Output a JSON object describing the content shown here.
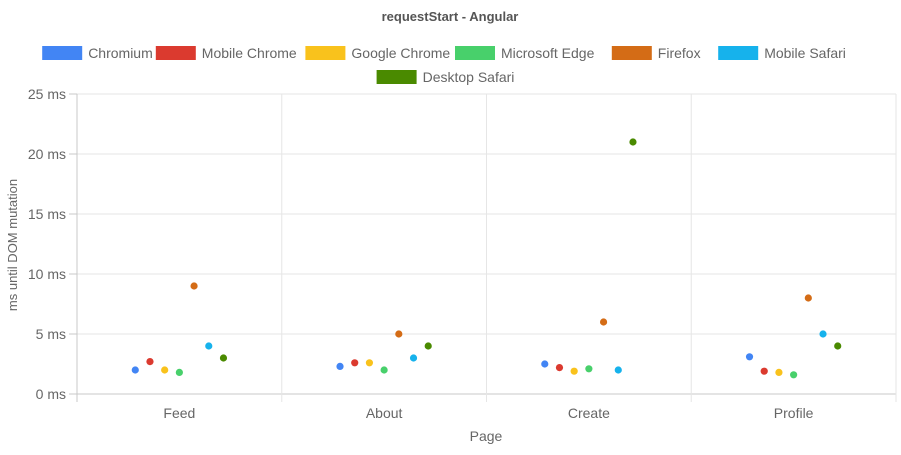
{
  "chart_data": {
    "type": "scatter",
    "title": "requestStart - Angular",
    "xlabel": "Page",
    "ylabel": "ms until DOM mutation",
    "categories": [
      "Feed",
      "About",
      "Create",
      "Profile"
    ],
    "ylim": [
      0,
      25
    ],
    "yticks": [
      0,
      5,
      10,
      15,
      20,
      25
    ],
    "ytick_labels": [
      "0 ms",
      "5 ms",
      "10 ms",
      "15 ms",
      "20 ms",
      "25 ms"
    ],
    "grid": true,
    "legend_position": "top",
    "series": [
      {
        "name": "Chromium",
        "color": "#4285f4",
        "values": [
          2.0,
          2.3,
          2.5,
          3.1
        ]
      },
      {
        "name": "Mobile Chrome",
        "color": "#db3a2f",
        "values": [
          2.7,
          2.6,
          2.2,
          1.9
        ]
      },
      {
        "name": "Google Chrome",
        "color": "#f9c21c",
        "values": [
          2.0,
          2.6,
          1.9,
          1.8
        ]
      },
      {
        "name": "Microsoft Edge",
        "color": "#48d06b",
        "values": [
          1.8,
          2.0,
          2.1,
          1.6
        ]
      },
      {
        "name": "Firefox",
        "color": "#d46c16",
        "values": [
          9.0,
          5.0,
          6.0,
          8.0
        ]
      },
      {
        "name": "Mobile Safari",
        "color": "#16b2ec",
        "values": [
          4.0,
          3.0,
          2.0,
          5.0
        ]
      },
      {
        "name": "Desktop Safari",
        "color": "#4a8a00",
        "values": [
          3.0,
          4.0,
          21.0,
          4.0
        ]
      }
    ]
  }
}
